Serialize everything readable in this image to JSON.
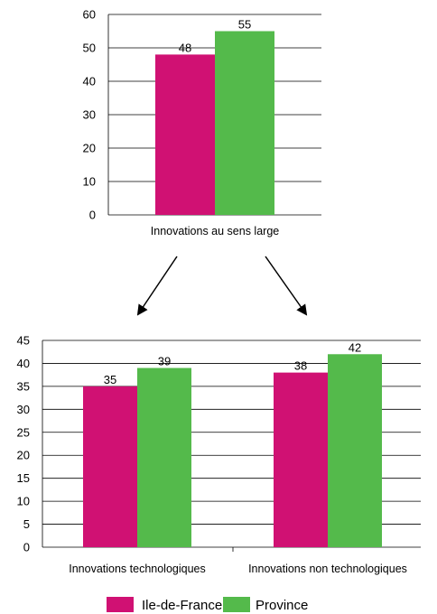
{
  "colors": {
    "ile_de_france": "#D01173",
    "province": "#54BA4B"
  },
  "legend": [
    {
      "name": "Ile-de-France",
      "color": "#D01173"
    },
    {
      "name": "Province",
      "color": "#54BA4B"
    }
  ],
  "chart_data": [
    {
      "type": "bar",
      "categories": [
        "Innovations au sens large"
      ],
      "series": [
        {
          "name": "Ile-de-France",
          "values": [
            48
          ]
        },
        {
          "name": "Province",
          "values": [
            55
          ]
        }
      ],
      "ylim": [
        0,
        60
      ],
      "yticks": [
        0,
        10,
        20,
        30,
        40,
        50,
        60
      ],
      "grid": true
    },
    {
      "type": "bar",
      "categories": [
        "Innovations technologiques",
        "Innovations non technologiques"
      ],
      "series": [
        {
          "name": "Ile-de-France",
          "values": [
            35,
            38
          ]
        },
        {
          "name": "Province",
          "values": [
            39,
            42
          ]
        }
      ],
      "ylim": [
        0,
        45
      ],
      "yticks": [
        0,
        5,
        10,
        15,
        20,
        25,
        30,
        35,
        40,
        45
      ],
      "grid": true,
      "legend_position": "bottom"
    }
  ]
}
